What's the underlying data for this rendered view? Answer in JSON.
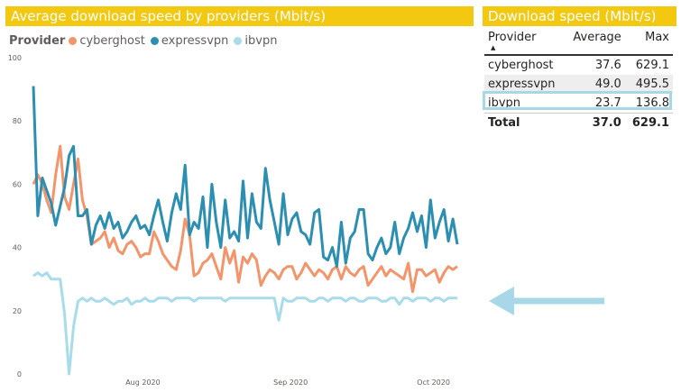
{
  "chart_title": "Average download speed by providers (Mbit/s)",
  "table_title": "Download speed (Mbit/s)",
  "colors": {
    "title_bar": "#f2c811",
    "cyberghost": "#f4946a",
    "expressvpn": "#2c8fb1",
    "ibvpn": "#a8dcea",
    "arrow": "#a8d8e8"
  },
  "legend": {
    "title": "Provider",
    "items": [
      {
        "label": "cyberghost",
        "color": "#f4946a"
      },
      {
        "label": "expressvpn",
        "color": "#2c8fb1"
      },
      {
        "label": "ibvpn",
        "color": "#a8dcea"
      }
    ]
  },
  "table": {
    "headers": {
      "provider": "Provider",
      "average": "Average",
      "max": "Max"
    },
    "sort_icon": "sort-ascending-icon",
    "rows": [
      {
        "provider": "cyberghost",
        "average": "37.6",
        "max": "629.1"
      },
      {
        "provider": "expressvpn",
        "average": "49.0",
        "max": "495.5"
      },
      {
        "provider": "ibvpn",
        "average": "23.7",
        "max": "136.8"
      }
    ],
    "total": {
      "label": "Total",
      "average": "37.0",
      "max": "629.1"
    }
  },
  "chart_data": {
    "type": "line",
    "title": "Average download speed by providers (Mbit/s)",
    "xlabel": "",
    "ylabel": "",
    "ylim": [
      0,
      100
    ],
    "yticks": [
      0,
      20,
      40,
      60,
      80,
      100
    ],
    "xtick_labels": [
      "Aug 2020",
      "Sep 2020",
      "Oct 2020"
    ],
    "x_start": "2020-07-09",
    "x_end": "2020-10-06",
    "xtick_dates": [
      "2020-08-01",
      "2020-09-01",
      "2020-10-01"
    ],
    "grid": false,
    "legend_position": "top-left",
    "series": [
      {
        "name": "cyberghost",
        "values": [
          60,
          63,
          60,
          55,
          51,
          63,
          72,
          56,
          52,
          60,
          68,
          55,
          50,
          41,
          42,
          43,
          45,
          40,
          43,
          39,
          38,
          41,
          42,
          40,
          37,
          38,
          38,
          45,
          42,
          38,
          36,
          34,
          33,
          39,
          49,
          44,
          31,
          32,
          35,
          36,
          38,
          34,
          30,
          40,
          35,
          39,
          29,
          37,
          35,
          38,
          36,
          28,
          31,
          33,
          32,
          30,
          33,
          34,
          34,
          30,
          32,
          35,
          33,
          31,
          33,
          32,
          30,
          33,
          34,
          30,
          34,
          32,
          31,
          33,
          34,
          28,
          30,
          32,
          34,
          31,
          33,
          32,
          31,
          30,
          35,
          26,
          33,
          33,
          31,
          32,
          33,
          29,
          32,
          34,
          33,
          34
        ]
      },
      {
        "name": "expressvpn",
        "values": [
          91,
          50,
          62,
          58,
          54,
          47,
          53,
          59,
          69,
          72,
          50,
          50,
          52,
          41,
          47,
          50,
          46,
          51,
          46,
          48,
          43,
          45,
          48,
          50,
          46,
          47,
          44,
          50,
          55,
          48,
          42,
          51,
          57,
          52,
          66,
          44,
          48,
          46,
          56,
          40,
          60,
          48,
          40,
          55,
          43,
          45,
          42,
          61,
          43,
          57,
          48,
          46,
          65,
          55,
          48,
          41,
          57,
          44,
          49,
          51,
          45,
          44,
          41,
          51,
          52,
          37,
          36,
          40,
          34,
          48,
          35,
          43,
          45,
          52,
          52,
          38,
          36,
          40,
          43,
          38,
          40,
          48,
          38,
          43,
          46,
          51,
          45,
          50,
          40,
          55,
          43,
          48,
          52,
          42,
          49,
          41
        ]
      },
      {
        "name": "ibvpn",
        "values": [
          31,
          32,
          31,
          32,
          30,
          30,
          30,
          19,
          0,
          15,
          23,
          24,
          23,
          24,
          23,
          23,
          24,
          23,
          22,
          23,
          23,
          24,
          22,
          23,
          23,
          24,
          23,
          23,
          24,
          24,
          24,
          23,
          24,
          24,
          24,
          24,
          23,
          24,
          24,
          24,
          24,
          24,
          24,
          23,
          24,
          24,
          24,
          24,
          24,
          24,
          24,
          24,
          24,
          24,
          24,
          17,
          24,
          23,
          23,
          24,
          24,
          24,
          23,
          23,
          24,
          24,
          23,
          24,
          24,
          24,
          23,
          24,
          24,
          23,
          23,
          24,
          24,
          24,
          23,
          23,
          24,
          24,
          22,
          24,
          24,
          23,
          24,
          24,
          24,
          23,
          24,
          24,
          23,
          24,
          24,
          24
        ]
      }
    ]
  }
}
